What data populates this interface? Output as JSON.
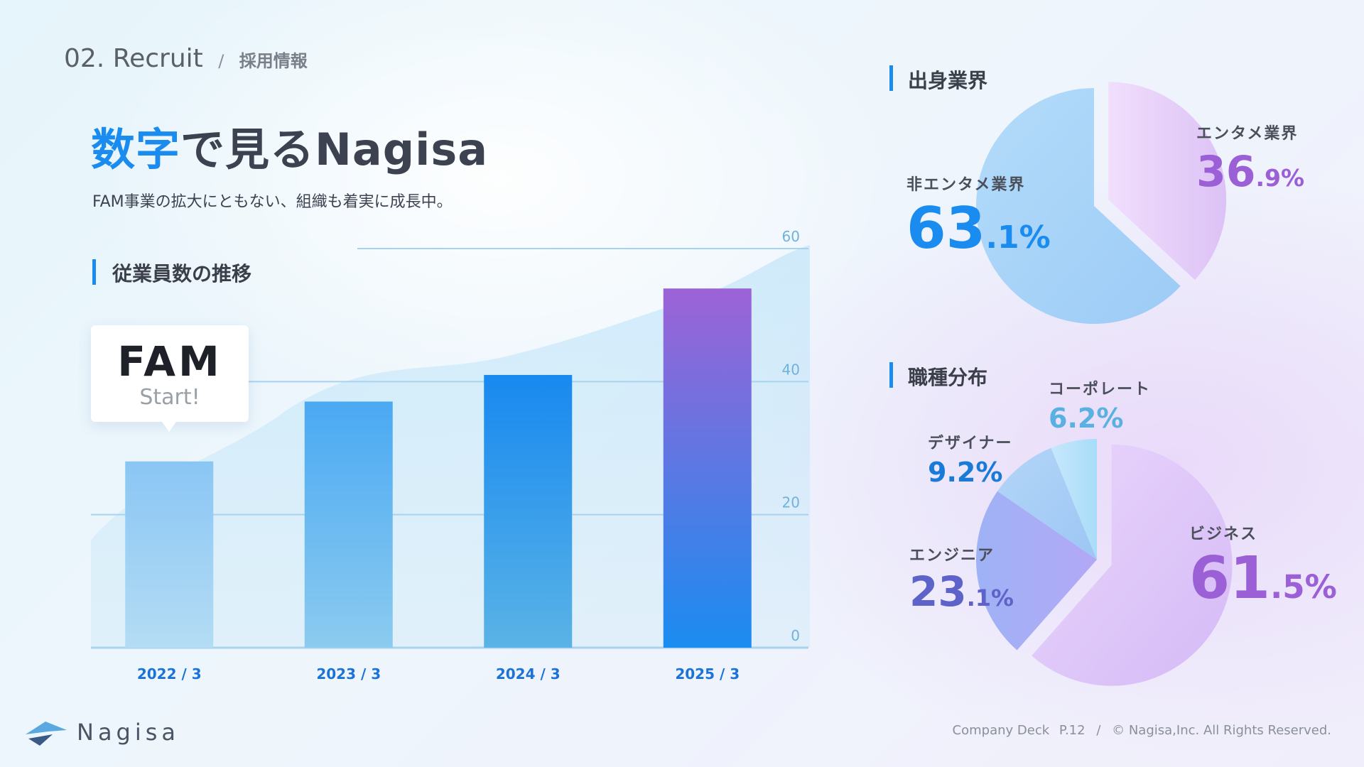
{
  "header": {
    "section_number": "02.",
    "section_title": "Recruit",
    "separator": "/",
    "section_sub": "採用情報"
  },
  "headline": {
    "highlight": "数字",
    "rest": "で見るNagisa",
    "subtitle": "FAM事業の拡大にともない、組織も着実に成長中。"
  },
  "employee_section": {
    "title": "従業員数の推移"
  },
  "callout": {
    "logo_text": "FAM",
    "label": "Start!"
  },
  "industry_section": {
    "title": "出身業界"
  },
  "role_section": {
    "title": "職種分布"
  },
  "footer": {
    "brand": "Nagisa",
    "deck": "Company Deck",
    "page": "P.12",
    "sep": "/",
    "copyright": "© Nagisa,Inc. All Rights Reserved."
  },
  "colors": {
    "accent_blue": "#1a8cf0",
    "accent_purple": "#9b5fd6",
    "text_dark": "#3a3f4a"
  },
  "chart_data": [
    {
      "type": "bar",
      "title": "従業員数の推移",
      "categories": [
        "2022 / 3",
        "2023 / 3",
        "2024 / 3",
        "2025 / 3"
      ],
      "values": [
        28,
        37,
        41,
        54
      ],
      "ylim": [
        0,
        60
      ],
      "yticks": [
        "0",
        "20",
        "40",
        "60"
      ],
      "grid": true
    },
    {
      "type": "pie",
      "title": "出身業界",
      "slices": [
        {
          "label": "非エンタメ業界",
          "int": "63",
          "dec": ".1%",
          "value": 63.1
        },
        {
          "label": "エンタメ業界",
          "int": "36",
          "dec": ".9%",
          "value": 36.9
        }
      ]
    },
    {
      "type": "pie",
      "title": "職種分布",
      "slices": [
        {
          "label": "ビジネス",
          "int": "61",
          "dec": ".5%",
          "value": 61.5
        },
        {
          "label": "エンジニア",
          "int": "23",
          "dec": ".1%",
          "value": 23.1
        },
        {
          "label": "デザイナー",
          "int": "9.2%",
          "dec": "",
          "value": 9.2
        },
        {
          "label": "コーポレート",
          "int": "6.2%",
          "dec": "",
          "value": 6.2
        }
      ]
    }
  ]
}
